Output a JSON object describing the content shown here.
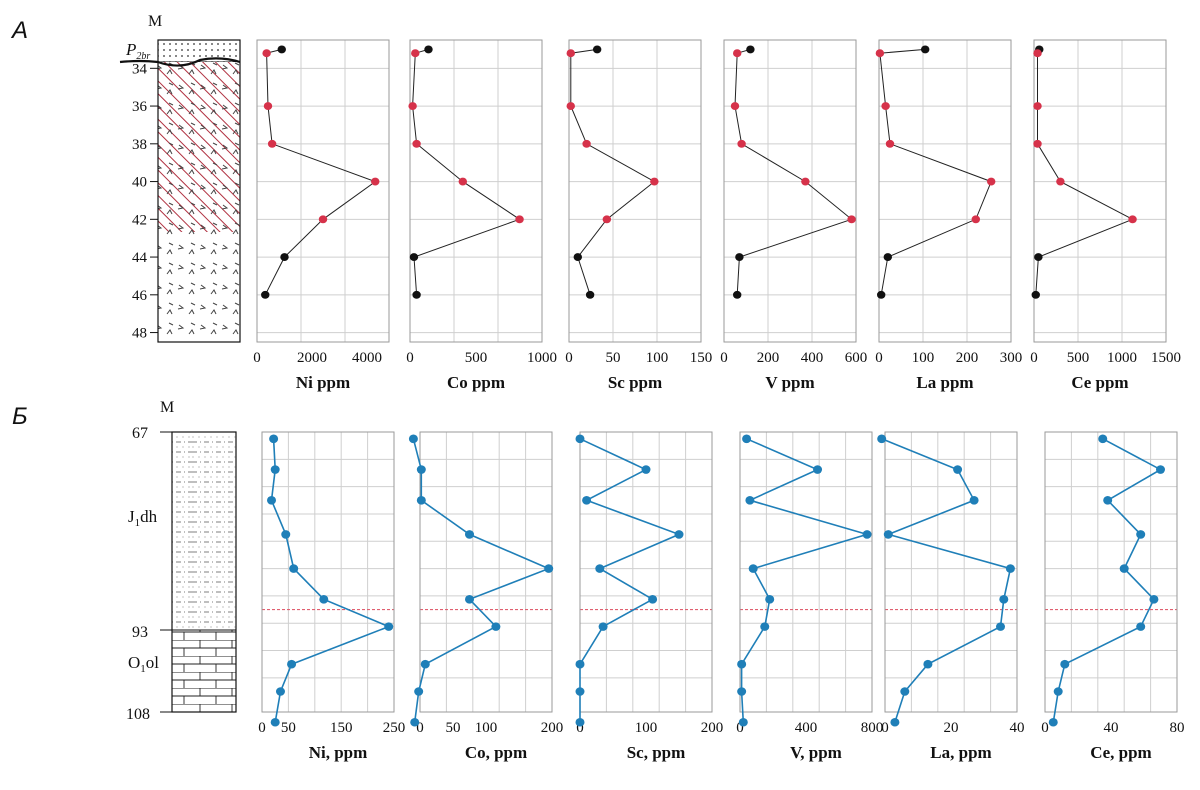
{
  "figure": {
    "panel_a_label": "А",
    "panel_b_label": "Б"
  },
  "panel_a": {
    "depth_unit": "М",
    "formation_label": "P",
    "formation_sub": "2br",
    "depth_ticks": [
      "34",
      "36",
      "38",
      "40",
      "42",
      "44",
      "46",
      "48"
    ],
    "colors": {
      "line": "#222222",
      "point_red": "#d6324a",
      "point_black": "#111111",
      "hatch": "#b03040"
    }
  },
  "panel_b": {
    "depth_unit": "М",
    "depth_ticks": [
      "67",
      "93",
      "108"
    ],
    "unit_labels": [
      {
        "main": "J",
        "sub": "1",
        "rest": "dh"
      },
      {
        "main": "O",
        "sub": "1",
        "rest": "ol"
      }
    ],
    "colors": {
      "line": "#1f7fb8",
      "point": "#1f7fb8",
      "boundary": "#e06070"
    }
  },
  "chart_data": [
    {
      "type": "line",
      "panel": "А",
      "xlabel": "Ni ppm",
      "ylabel": "",
      "xlim": [
        0,
        4800
      ],
      "xticks": [
        "0",
        "2000",
        "4000"
      ],
      "ylim": [
        32.5,
        48.5
      ],
      "grid": true,
      "x": [
        900,
        350,
        400,
        550,
        4300,
        2400,
        1000,
        300
      ],
      "y": [
        33.0,
        33.2,
        36,
        38,
        40,
        42,
        44,
        46
      ],
      "point_colors": [
        "black",
        "red",
        "red",
        "red",
        "red",
        "red",
        "black",
        "black"
      ]
    },
    {
      "type": "line",
      "panel": "А",
      "xlabel": "Co ppm",
      "ylabel": "",
      "xlim": [
        0,
        1000
      ],
      "xticks": [
        "0",
        "500",
        "1000"
      ],
      "ylim": [
        32.5,
        48.5
      ],
      "grid": true,
      "x": [
        140,
        40,
        20,
        50,
        400,
        830,
        30,
        50
      ],
      "y": [
        33.0,
        33.2,
        36,
        38,
        40,
        42,
        44,
        46
      ],
      "point_colors": [
        "black",
        "red",
        "red",
        "red",
        "red",
        "red",
        "black",
        "black"
      ]
    },
    {
      "type": "line",
      "panel": "А",
      "xlabel": "Sc ppm",
      "ylabel": "",
      "xlim": [
        0,
        150
      ],
      "xticks": [
        "0",
        "50",
        "100",
        "150"
      ],
      "ylim": [
        32.5,
        48.5
      ],
      "grid": true,
      "x": [
        32,
        2,
        2,
        20,
        97,
        43,
        10,
        24
      ],
      "y": [
        33.0,
        33.2,
        36,
        38,
        40,
        42,
        44,
        46
      ],
      "point_colors": [
        "black",
        "red",
        "red",
        "red",
        "red",
        "red",
        "black",
        "black"
      ]
    },
    {
      "type": "line",
      "panel": "А",
      "xlabel": "V ppm",
      "ylabel": "",
      "xlim": [
        0,
        600
      ],
      "xticks": [
        "0",
        "200",
        "400",
        "600"
      ],
      "ylim": [
        32.5,
        48.5
      ],
      "grid": true,
      "x": [
        120,
        60,
        50,
        80,
        370,
        580,
        70,
        60
      ],
      "y": [
        33.0,
        33.2,
        36,
        38,
        40,
        42,
        44,
        46
      ],
      "point_colors": [
        "black",
        "red",
        "red",
        "red",
        "red",
        "red",
        "black",
        "black"
      ]
    },
    {
      "type": "line",
      "panel": "А",
      "xlabel": "La ppm",
      "ylabel": "",
      "xlim": [
        0,
        300
      ],
      "xticks": [
        "0",
        "100",
        "200",
        "300"
      ],
      "ylim": [
        32.5,
        48.5
      ],
      "grid": true,
      "x": [
        105,
        2,
        15,
        25,
        255,
        220,
        20,
        5
      ],
      "y": [
        33.0,
        33.2,
        36,
        38,
        40,
        42,
        44,
        46
      ],
      "point_colors": [
        "black",
        "red",
        "red",
        "red",
        "red",
        "red",
        "black",
        "black"
      ]
    },
    {
      "type": "line",
      "panel": "А",
      "xlabel": "Ce ppm",
      "ylabel": "",
      "xlim": [
        0,
        1500
      ],
      "xticks": [
        "0",
        "500",
        "1000",
        "1500"
      ],
      "ylim": [
        32.5,
        48.5
      ],
      "grid": true,
      "x": [
        60,
        40,
        40,
        40,
        300,
        1120,
        50,
        20
      ],
      "y": [
        33.0,
        33.2,
        36,
        38,
        40,
        42,
        44,
        46
      ],
      "point_colors": [
        "black",
        "red",
        "red",
        "red",
        "red",
        "red",
        "black",
        "black"
      ]
    },
    {
      "type": "line",
      "panel": "Б",
      "xlabel": "Ni, ppm",
      "ylabel": "",
      "xlim": [
        0,
        250
      ],
      "xticks": [
        "0",
        "50",
        "150",
        "250"
      ],
      "ylim": [
        67,
        108
      ],
      "grid": true,
      "x": [
        22,
        25,
        18,
        45,
        60,
        117,
        240,
        56,
        35,
        25
      ],
      "y": [
        68,
        72.5,
        77,
        82,
        87,
        91.5,
        95.5,
        101,
        105,
        109.5
      ]
    },
    {
      "type": "line",
      "panel": "Б",
      "xlabel": "Co, ppm",
      "ylabel": "",
      "xlim": [
        0,
        200
      ],
      "xticks": [
        "0",
        "50",
        "100",
        "200"
      ],
      "ylim": [
        67,
        108
      ],
      "grid": true,
      "x": [
        -10,
        2,
        2,
        75,
        195,
        75,
        115,
        8,
        -2,
        -8
      ],
      "y": [
        68,
        72.5,
        77,
        82,
        87,
        91.5,
        95.5,
        101,
        105,
        109.5
      ]
    },
    {
      "type": "line",
      "panel": "Б",
      "xlabel": "Sc, ppm",
      "ylabel": "",
      "xlim": [
        0,
        200
      ],
      "xticks": [
        "0",
        "100",
        "200"
      ],
      "ylim": [
        67,
        108
      ],
      "grid": true,
      "x": [
        0,
        100,
        10,
        150,
        30,
        110,
        35,
        0,
        0,
        0
      ],
      "y": [
        68,
        72.5,
        77,
        82,
        87,
        91.5,
        95.5,
        101,
        105,
        109.5
      ]
    },
    {
      "type": "line",
      "panel": "Б",
      "xlabel": "V, ppm",
      "ylabel": "",
      "xlim": [
        0,
        800
      ],
      "xticks": [
        "0",
        "400",
        "800"
      ],
      "ylim": [
        67,
        108
      ],
      "grid": true,
      "x": [
        40,
        470,
        60,
        770,
        80,
        180,
        150,
        10,
        10,
        20
      ],
      "y": [
        68,
        72.5,
        77,
        82,
        87,
        91.5,
        95.5,
        101,
        105,
        109.5
      ]
    },
    {
      "type": "line",
      "panel": "Б",
      "xlabel": "La, ppm",
      "ylabel": "",
      "xlim": [
        0,
        40
      ],
      "xticks": [
        "0",
        "20",
        "40"
      ],
      "ylim": [
        67,
        108
      ],
      "grid": true,
      "x": [
        -1,
        22,
        27,
        1,
        38,
        36,
        35,
        13,
        6,
        3
      ],
      "y": [
        68,
        72.5,
        77,
        82,
        87,
        91.5,
        95.5,
        101,
        105,
        109.5
      ]
    },
    {
      "type": "line",
      "panel": "Б",
      "xlabel": "Ce, ppm",
      "ylabel": "",
      "xlim": [
        0,
        80
      ],
      "xticks": [
        "0",
        "40",
        "80"
      ],
      "ylim": [
        67,
        108
      ],
      "grid": true,
      "x": [
        35,
        70,
        38,
        58,
        48,
        66,
        58,
        12,
        8,
        5
      ],
      "y": [
        68,
        72.5,
        77,
        82,
        87,
        91.5,
        95.5,
        101,
        105,
        109.5
      ]
    }
  ]
}
